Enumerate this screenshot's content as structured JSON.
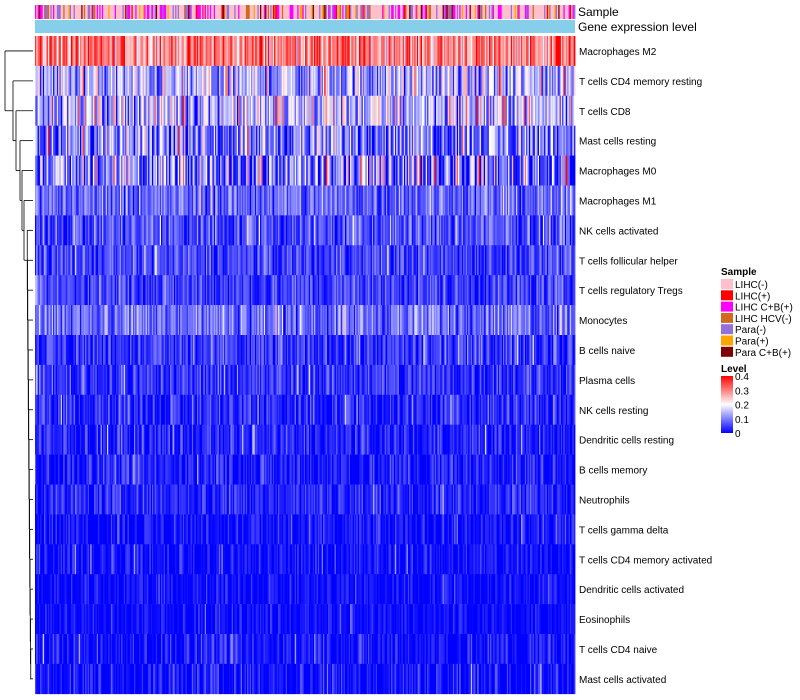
{
  "chart_data": {
    "type": "heatmap",
    "title": "",
    "annotation_tracks": [
      {
        "label": "Sample",
        "kind": "categorical"
      },
      {
        "label": "Gene expression level",
        "kind": "constant",
        "color": "#87ceeb"
      }
    ],
    "rows": [
      {
        "name": "Macrophages M2",
        "mean": 0.3,
        "spread": 0.09
      },
      {
        "name": "T cells CD4 memory resting",
        "mean": 0.13,
        "spread": 0.1
      },
      {
        "name": "T cells CD8",
        "mean": 0.15,
        "spread": 0.11
      },
      {
        "name": "Mast cells resting",
        "mean": 0.1,
        "spread": 0.1
      },
      {
        "name": "Macrophages M0",
        "mean": 0.09,
        "spread": 0.13
      },
      {
        "name": "Macrophages M1",
        "mean": 0.08,
        "spread": 0.06
      },
      {
        "name": "NK cells activated",
        "mean": 0.06,
        "spread": 0.06
      },
      {
        "name": "T cells follicular helper",
        "mean": 0.05,
        "spread": 0.05
      },
      {
        "name": "T cells regulatory  Tregs",
        "mean": 0.05,
        "spread": 0.05
      },
      {
        "name": "Monocytes",
        "mean": 0.09,
        "spread": 0.06
      },
      {
        "name": "B cells naive",
        "mean": 0.04,
        "spread": 0.05
      },
      {
        "name": "Plasma cells",
        "mean": 0.04,
        "spread": 0.05
      },
      {
        "name": "NK cells resting",
        "mean": 0.03,
        "spread": 0.05
      },
      {
        "name": "Dendritic cells resting",
        "mean": 0.02,
        "spread": 0.05
      },
      {
        "name": "B cells memory",
        "mean": 0.02,
        "spread": 0.05
      },
      {
        "name": "Neutrophils",
        "mean": 0.03,
        "spread": 0.04
      },
      {
        "name": "T cells gamma delta",
        "mean": 0.01,
        "spread": 0.04
      },
      {
        "name": "T cells CD4 memory activated",
        "mean": 0.01,
        "spread": 0.04
      },
      {
        "name": "Dendritic cells activated",
        "mean": 0.01,
        "spread": 0.03
      },
      {
        "name": "Eosinophils",
        "mean": 0.005,
        "spread": 0.03
      },
      {
        "name": "T cells CD4 naive",
        "mean": 0.01,
        "spread": 0.05
      },
      {
        "name": "Mast cells activated",
        "mean": 0.01,
        "spread": 0.05
      }
    ],
    "n_samples": 420,
    "legends": {
      "sample": {
        "title": "Sample",
        "entries": [
          {
            "label": "LIHC(-)",
            "color": "#ffc0cb"
          },
          {
            "label": "LIHC(+)",
            "color": "#ff0000"
          },
          {
            "label": "LIHC C+B(+)",
            "color": "#ff00ff"
          },
          {
            "label": "LIHC HCV(-)",
            "color": "#d2691e"
          },
          {
            "label": "Para(-)",
            "color": "#9370db"
          },
          {
            "label": "Para(+)",
            "color": "#ffa500"
          },
          {
            "label": "Para C+B(+)",
            "color": "#800000"
          }
        ],
        "weights": [
          0.52,
          0.04,
          0.14,
          0.08,
          0.12,
          0.06,
          0.04
        ]
      },
      "level": {
        "title": "Level",
        "ticks": [
          0.4,
          0.3,
          0.2,
          0.1,
          0
        ],
        "range": [
          0,
          0.4
        ],
        "colors": [
          "#0000ff",
          "#ffffff",
          "#ff0000"
        ]
      }
    }
  }
}
